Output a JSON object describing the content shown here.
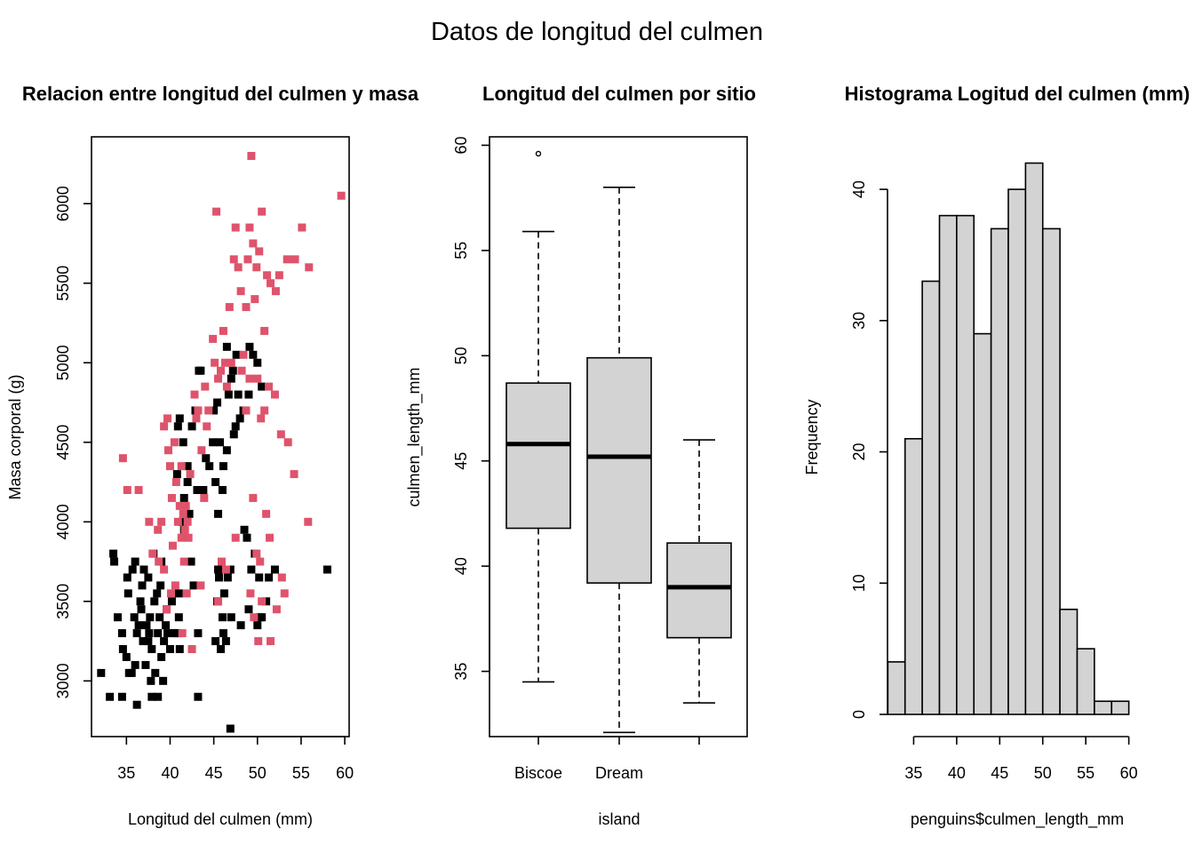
{
  "main_title": "Datos de longitud del culmen",
  "chart_data": [
    {
      "type": "scatter",
      "title": "Relacion entre longitud del culmen y masa",
      "xlabel": "Longitud del culmen (mm)",
      "ylabel": "Masa corporal (g)",
      "xlim": [
        31,
        60.5
      ],
      "ylim": [
        2650,
        6420
      ],
      "xticks": [
        35,
        40,
        45,
        50,
        55,
        60
      ],
      "yticks": [
        3000,
        3500,
        4000,
        4500,
        5000,
        5500,
        6000
      ],
      "colors": {
        "group_black": "#000000",
        "group_red": "#DF536B"
      },
      "series": [
        {
          "color": "#000000",
          "points": [
            [
              32.1,
              3050
            ],
            [
              33.1,
              2900
            ],
            [
              34.5,
              2900
            ],
            [
              36.2,
              2850
            ],
            [
              37.9,
              2900
            ],
            [
              38.6,
              2900
            ],
            [
              43.2,
              2900
            ],
            [
              46.9,
              2700
            ],
            [
              33.5,
              3800
            ],
            [
              34.0,
              3400
            ],
            [
              34.5,
              3300
            ],
            [
              34.6,
              3200
            ],
            [
              35.0,
              3150
            ],
            [
              35.3,
              3050
            ],
            [
              35.6,
              3050
            ],
            [
              35.2,
              3550
            ],
            [
              35.7,
              3700
            ],
            [
              35.9,
              3400
            ],
            [
              36.0,
              3100
            ],
            [
              36.2,
              3300
            ],
            [
              36.4,
              3350
            ],
            [
              36.6,
              3500
            ],
            [
              36.7,
              3450
            ],
            [
              36.8,
              3600
            ],
            [
              36.9,
              3250
            ],
            [
              37.0,
              3700
            ],
            [
              37.2,
              3100
            ],
            [
              37.3,
              3350
            ],
            [
              37.5,
              3250
            ],
            [
              37.6,
              3300
            ],
            [
              37.7,
              3400
            ],
            [
              37.8,
              3000
            ],
            [
              37.9,
              3200
            ],
            [
              38.1,
              3800
            ],
            [
              38.2,
              3500
            ],
            [
              38.3,
              3050
            ],
            [
              38.5,
              3550
            ],
            [
              38.6,
              3300
            ],
            [
              38.8,
              3400
            ],
            [
              38.9,
              3600
            ],
            [
              39.0,
              3150
            ],
            [
              39.2,
              3000
            ],
            [
              39.3,
              3250
            ],
            [
              39.5,
              3350
            ],
            [
              39.6,
              3450
            ],
            [
              39.7,
              3300
            ],
            [
              40.0,
              3200
            ],
            [
              40.2,
              3500
            ],
            [
              40.5,
              3300
            ],
            [
              40.8,
              3300
            ],
            [
              41.0,
              3400
            ],
            [
              41.1,
              3200
            ],
            [
              41.6,
              3950
            ],
            [
              36.0,
              3750
            ],
            [
              37.5,
              3650
            ],
            [
              39.0,
              3750
            ],
            [
              33.6,
              3750
            ],
            [
              35.1,
              3650
            ],
            [
              40.8,
              4300
            ],
            [
              40.9,
              4600
            ],
            [
              41.1,
              4650
            ],
            [
              41.4,
              4000
            ],
            [
              41.5,
              4500
            ],
            [
              42.0,
              4250
            ],
            [
              42.2,
              4050
            ],
            [
              42.5,
              4600
            ],
            [
              42.9,
              4700
            ],
            [
              43.1,
              4200
            ],
            [
              43.5,
              4950
            ],
            [
              44.1,
              4400
            ],
            [
              45.0,
              4700
            ],
            [
              45.2,
              4250
            ],
            [
              45.5,
              4050
            ],
            [
              45.7,
              4500
            ],
            [
              46.0,
              4200
            ],
            [
              46.1,
              4350
            ],
            [
              46.5,
              4450
            ],
            [
              46.7,
              4800
            ],
            [
              47.0,
              4900
            ],
            [
              47.3,
              4550
            ],
            [
              47.5,
              4600
            ],
            [
              47.8,
              4800
            ],
            [
              48.0,
              4650
            ],
            [
              48.4,
              4700
            ],
            [
              49.0,
              4800
            ],
            [
              49.1,
              5100
            ],
            [
              49.5,
              5050
            ],
            [
              50.0,
              5000
            ],
            [
              50.5,
              4850
            ],
            [
              47.2,
              4950
            ],
            [
              47.6,
              5050
            ],
            [
              46.5,
              5100
            ],
            [
              45.4,
              4750
            ],
            [
              44.9,
              4500
            ],
            [
              44.5,
              4350
            ],
            [
              43.8,
              4200
            ],
            [
              43.3,
              4950
            ],
            [
              42.0,
              4350
            ],
            [
              41.6,
              4150
            ],
            [
              41.0,
              3550
            ],
            [
              42.4,
              3750
            ],
            [
              42.7,
              3600
            ],
            [
              43.2,
              3300
            ],
            [
              45.2,
              3250
            ],
            [
              45.4,
              3500
            ],
            [
              45.5,
              3700
            ],
            [
              45.6,
              3650
            ],
            [
              46.0,
              3400
            ],
            [
              46.2,
              3550
            ],
            [
              46.4,
              3250
            ],
            [
              46.6,
              3650
            ],
            [
              46.9,
              3700
            ],
            [
              47.0,
              3400
            ],
            [
              48.1,
              3350
            ],
            [
              48.5,
              3950
            ],
            [
              48.8,
              3900
            ],
            [
              49.0,
              3450
            ],
            [
              49.3,
              3700
            ],
            [
              49.7,
              3800
            ],
            [
              50.0,
              3350
            ],
            [
              50.2,
              3650
            ],
            [
              50.3,
              3400
            ],
            [
              50.5,
              3400
            ],
            [
              51.0,
              3500
            ],
            [
              51.3,
              3650
            ],
            [
              52.0,
              3700
            ],
            [
              58.0,
              3700
            ],
            [
              46.1,
              3300
            ],
            [
              45.8,
              3200
            ]
          ]
        },
        {
          "color": "#DF536B",
          "points": [
            [
              34.6,
              4400
            ],
            [
              35.1,
              4200
            ],
            [
              36.4,
              4200
            ],
            [
              37.6,
              4000
            ],
            [
              38.0,
              3800
            ],
            [
              38.6,
              3950
            ],
            [
              39.0,
              4000
            ],
            [
              39.3,
              4600
            ],
            [
              39.7,
              4650
            ],
            [
              40.0,
              4350
            ],
            [
              40.2,
              4150
            ],
            [
              40.5,
              4500
            ],
            [
              40.7,
              4250
            ],
            [
              40.9,
              4000
            ],
            [
              41.1,
              4100
            ],
            [
              41.3,
              3900
            ],
            [
              41.5,
              4050
            ],
            [
              41.7,
              3950
            ],
            [
              41.8,
              4100
            ],
            [
              42.0,
              4000
            ],
            [
              42.1,
              3900
            ],
            [
              41.6,
              3750
            ],
            [
              41.9,
              3550
            ],
            [
              40.3,
              3850
            ],
            [
              40.6,
              3600
            ],
            [
              39.3,
              3700
            ],
            [
              39.6,
              3450
            ],
            [
              38.7,
              3750
            ],
            [
              40.1,
              3550
            ],
            [
              41.4,
              3300
            ],
            [
              42.8,
              4800
            ],
            [
              43.2,
              4700
            ],
            [
              43.6,
              4450
            ],
            [
              44.0,
              4850
            ],
            [
              44.4,
              4700
            ],
            [
              44.9,
              5150
            ],
            [
              45.1,
              5000
            ],
            [
              45.3,
              5950
            ],
            [
              45.5,
              4900
            ],
            [
              45.8,
              4950
            ],
            [
              46.1,
              5200
            ],
            [
              46.3,
              5000
            ],
            [
              46.5,
              4850
            ],
            [
              46.8,
              5350
            ],
            [
              47.0,
              5000
            ],
            [
              47.3,
              5650
            ],
            [
              47.5,
              5850
            ],
            [
              47.8,
              5600
            ],
            [
              48.1,
              5450
            ],
            [
              48.4,
              5050
            ],
            [
              48.7,
              5350
            ],
            [
              48.9,
              5650
            ],
            [
              49.1,
              5850
            ],
            [
              49.3,
              6300
            ],
            [
              49.5,
              5750
            ],
            [
              49.7,
              5400
            ],
            [
              49.9,
              5600
            ],
            [
              50.2,
              5700
            ],
            [
              50.5,
              5950
            ],
            [
              50.8,
              5200
            ],
            [
              51.1,
              5550
            ],
            [
              51.5,
              5500
            ],
            [
              52.1,
              5450
            ],
            [
              52.5,
              5550
            ],
            [
              53.4,
              5650
            ],
            [
              54.3,
              5650
            ],
            [
              55.1,
              5850
            ],
            [
              55.9,
              5600
            ],
            [
              59.6,
              6050
            ],
            [
              48.2,
              4950
            ],
            [
              48.7,
              4700
            ],
            [
              49.1,
              4900
            ],
            [
              49.5,
              4150
            ],
            [
              50.0,
              4900
            ],
            [
              50.4,
              4650
            ],
            [
              50.8,
              4700
            ],
            [
              51.3,
              4850
            ],
            [
              52.0,
              4800
            ],
            [
              52.7,
              4550
            ],
            [
              53.5,
              4500
            ],
            [
              54.2,
              4300
            ],
            [
              55.8,
              4000
            ],
            [
              49.9,
              3800
            ],
            [
              50.3,
              3750
            ],
            [
              50.5,
              3500
            ],
            [
              51.0,
              4050
            ],
            [
              51.4,
              3900
            ],
            [
              52.2,
              3450
            ],
            [
              52.8,
              3650
            ],
            [
              53.1,
              3550
            ],
            [
              49.2,
              3550
            ],
            [
              49.6,
              3400
            ],
            [
              50.1,
              3250
            ],
            [
              51.5,
              3250
            ],
            [
              47.5,
              3900
            ],
            [
              46.4,
              3700
            ],
            [
              45.9,
              3750
            ],
            [
              45.5,
              3500
            ],
            [
              43.5,
              3600
            ],
            [
              42.5,
              3200
            ],
            [
              44.2,
              4600
            ],
            [
              43.0,
              4650
            ],
            [
              42.3,
              4300
            ],
            [
              41.3,
              4350
            ],
            [
              39.8,
              4450
            ],
            [
              43.9,
              4150
            ]
          ]
        }
      ]
    },
    {
      "type": "box",
      "title": "Longitud del culmen por sitio",
      "xlabel": "island",
      "ylabel": "culmen_length_mm",
      "ylim": [
        31.9,
        60.4
      ],
      "yticks": [
        35,
        40,
        45,
        50,
        55,
        60
      ],
      "fill": "#D3D3D3",
      "categories": [
        "Biscoe",
        "Dream",
        ""
      ],
      "boxes": [
        {
          "label": "Biscoe",
          "min": 34.5,
          "q1": 41.8,
          "median": 45.8,
          "q3": 48.7,
          "max": 55.9,
          "outliers": [
            59.6
          ]
        },
        {
          "label": "Dream",
          "min": 32.1,
          "q1": 39.2,
          "median": 45.2,
          "q3": 49.9,
          "max": 58.0,
          "outliers": []
        },
        {
          "label": "",
          "min": 33.5,
          "q1": 36.6,
          "median": 39.0,
          "q3": 41.1,
          "max": 46.0,
          "outliers": []
        }
      ]
    },
    {
      "type": "bar",
      "title": "Histograma Logitud del culmen (mm)",
      "xlabel": "penguins$culmen_length_mm",
      "ylabel": "Frequency",
      "xlim": [
        30,
        62
      ],
      "ylim": [
        0,
        44
      ],
      "xticks": [
        35,
        40,
        45,
        50,
        55,
        60
      ],
      "yticks": [
        0,
        10,
        20,
        30,
        40
      ],
      "fill": "#D3D3D3",
      "bin_edges": [
        32,
        34,
        36,
        38,
        40,
        42,
        44,
        46,
        48,
        50,
        52,
        54,
        56,
        58,
        60
      ],
      "values": [
        4,
        21,
        33,
        38,
        38,
        29,
        37,
        40,
        42,
        37,
        8,
        5,
        1,
        1
      ]
    }
  ]
}
